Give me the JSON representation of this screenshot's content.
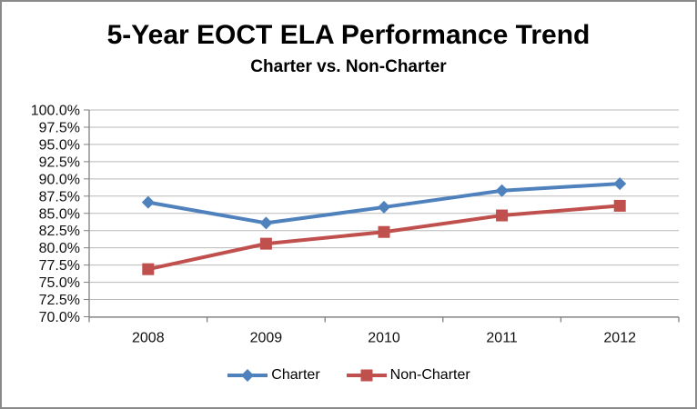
{
  "title": "5-Year EOCT ELA Performance Trend",
  "subtitle": "Charter vs. Non-Charter",
  "chart_data": {
    "type": "line",
    "categories": [
      "2008",
      "2009",
      "2010",
      "2011",
      "2012"
    ],
    "series": [
      {
        "name": "Charter",
        "slug": "charter",
        "marker": "diamond",
        "color": "#4F81BD",
        "values": [
          86.6,
          83.6,
          85.9,
          88.3,
          89.3
        ]
      },
      {
        "name": "Non-Charter",
        "slug": "non-charter",
        "marker": "square",
        "color": "#C0504D",
        "values": [
          76.9,
          80.6,
          82.3,
          84.7,
          86.1
        ]
      }
    ],
    "xlabel": "",
    "ylabel": "",
    "ylim": [
      70,
      100
    ],
    "ytick_step": 2.5,
    "y_ticks": [
      100.0,
      97.5,
      95.0,
      92.5,
      90.0,
      87.5,
      85.0,
      82.5,
      80.0,
      77.5,
      75.0,
      72.5,
      70.0
    ],
    "y_tick_labels": [
      "100.0%",
      "97.5%",
      "95.0%",
      "92.5%",
      "90.0%",
      "87.5%",
      "85.0%",
      "82.5%",
      "80.0%",
      "77.5%",
      "75.0%",
      "72.5%",
      "70.0%"
    ],
    "grid": "horizontal",
    "gridline_color": "#b9b9b9",
    "axis_color": "#808080",
    "legend_position": "bottom"
  }
}
